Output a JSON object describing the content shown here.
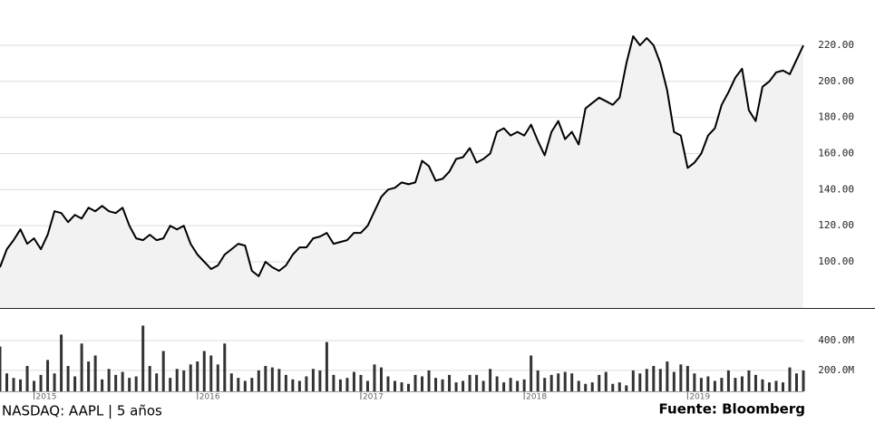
{
  "chart_data": {
    "type": "line",
    "categories": [
      null,
      null,
      null,
      null,
      null,
      "2015",
      null,
      null,
      null,
      null,
      null,
      null,
      null,
      null,
      null,
      null,
      null,
      null,
      null,
      null,
      null,
      null,
      null,
      null,
      null,
      null,
      null,
      null,
      null,
      "2016",
      null,
      null,
      null,
      null,
      null,
      null,
      null,
      null,
      null,
      null,
      null,
      null,
      null,
      null,
      null,
      null,
      null,
      null,
      null,
      null,
      null,
      null,
      null,
      "2017",
      null,
      null,
      null,
      null,
      null,
      null,
      null,
      null,
      null,
      null,
      null,
      null,
      null,
      null,
      null,
      null,
      null,
      null,
      null,
      null,
      null,
      null,
      null,
      "2018",
      null,
      null,
      null,
      null,
      null,
      null,
      null,
      null,
      null,
      null,
      null,
      null,
      null,
      null,
      null,
      null,
      null,
      null,
      null,
      null,
      null,
      null,
      null,
      "2019",
      null,
      null,
      null,
      null,
      null,
      null,
      null,
      null,
      null,
      null,
      null,
      null,
      null,
      null,
      null,
      null,
      null
    ],
    "series": [
      {
        "color": "#000000",
        "fill": "#f2f2f2",
        "values": [
          97,
          107,
          112,
          118,
          110,
          113,
          107,
          115,
          128,
          127,
          122,
          126,
          124,
          130,
          128,
          131,
          128,
          127,
          130,
          120,
          113,
          112,
          115,
          112,
          113,
          120,
          118,
          120,
          110,
          104,
          100,
          96,
          98,
          104,
          107,
          110,
          109,
          95,
          92,
          100,
          97,
          95,
          98,
          104,
          108,
          108,
          113,
          114,
          116,
          110,
          111,
          112,
          116,
          116,
          120,
          128,
          136,
          140,
          141,
          144,
          143,
          144,
          156,
          153,
          145,
          146,
          150,
          157,
          158,
          163,
          155,
          157,
          160,
          172,
          174,
          170,
          172,
          170,
          176,
          167,
          159,
          172,
          178,
          168,
          172,
          165,
          185,
          188,
          191,
          189,
          187,
          191,
          210,
          225,
          220,
          224,
          220,
          210,
          195,
          172,
          170,
          152,
          155,
          160,
          170,
          174,
          187,
          194,
          202,
          207,
          184,
          178,
          197,
          200,
          205,
          206,
          204,
          212,
          220
        ]
      },
      {
        "color": "#333333",
        "type": "bar",
        "axis": "y2",
        "values": [
          360,
          180,
          150,
          140,
          230,
          130,
          170,
          270,
          180,
          440,
          230,
          160,
          380,
          260,
          300,
          140,
          210,
          170,
          190,
          150,
          160,
          500,
          230,
          180,
          330,
          150,
          210,
          200,
          240,
          260,
          330,
          300,
          240,
          380,
          180,
          150,
          130,
          150,
          200,
          230,
          220,
          210,
          170,
          140,
          130,
          160,
          210,
          200,
          390,
          170,
          140,
          150,
          190,
          170,
          130,
          240,
          220,
          160,
          130,
          120,
          110,
          170,
          160,
          200,
          150,
          140,
          170,
          120,
          130,
          170,
          170,
          130,
          210,
          160,
          120,
          150,
          130,
          140,
          300,
          200,
          150,
          170,
          180,
          190,
          180,
          130,
          110,
          120,
          170,
          190,
          110,
          120,
          100,
          200,
          180,
          210,
          230,
          210,
          260,
          190,
          240,
          230,
          180,
          150,
          160,
          130,
          150,
          200,
          150,
          160,
          200,
          170,
          140,
          120,
          130,
          120,
          220,
          180,
          200
        ]
      }
    ],
    "ylim": [
      74.4,
      245.1
    ],
    "yticks": [
      {
        "value": 100,
        "label": "100.00"
      },
      {
        "value": 120,
        "label": "120.00"
      },
      {
        "value": 140,
        "label": "140.00"
      },
      {
        "value": 160,
        "label": "160.00"
      },
      {
        "value": 180,
        "label": "180.00"
      },
      {
        "value": 200,
        "label": "200.00"
      },
      {
        "value": 220,
        "label": "220.00"
      }
    ],
    "y2lim": [
      60,
      612
    ],
    "y2ticks": [
      {
        "value": 200,
        "label": "200.0M"
      },
      {
        "value": 400,
        "label": "400.0M"
      }
    ],
    "grid": true
  },
  "footer": {
    "caption": "NASDAQ: AAPL | 5 años",
    "source": "Fuente: Bloomberg"
  }
}
